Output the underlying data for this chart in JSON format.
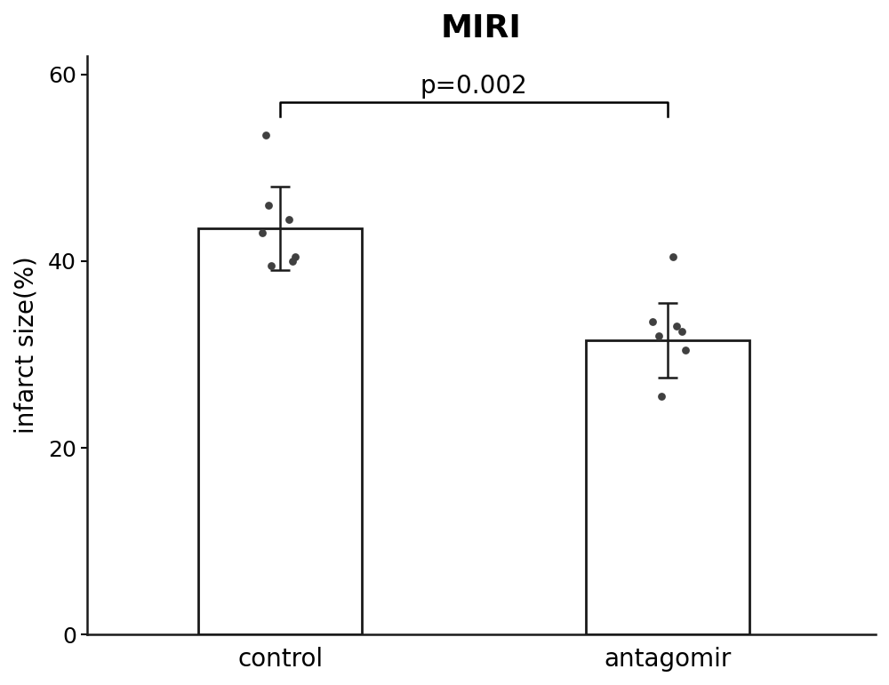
{
  "title": "MIRI",
  "ylabel": "infarct size(%)",
  "categories": [
    "control",
    "antagomir"
  ],
  "bar_means": [
    43.5,
    31.5
  ],
  "bar_errors": [
    4.5,
    4.0
  ],
  "bar_color": "#ffffff",
  "bar_edgecolor": "#1a1a1a",
  "dot_color": "#404040",
  "ylim": [
    0,
    62
  ],
  "yticks": [
    0,
    20,
    40,
    60
  ],
  "p_text": "p=0.002",
  "control_dots": [
    53.5,
    46.0,
    44.5,
    43.0,
    40.5,
    39.5,
    40.0
  ],
  "antagomir_dots": [
    40.5,
    33.5,
    33.0,
    32.5,
    32.0,
    30.5,
    25.5
  ],
  "bracket_y": 57.0,
  "bar_width": 0.55,
  "x_positions": [
    1.0,
    2.3
  ],
  "xlim": [
    0.35,
    3.0
  ],
  "background_color": "#ffffff",
  "title_fontsize": 26,
  "label_fontsize": 20,
  "tick_fontsize": 18,
  "cat_fontsize": 20,
  "control_x_offsets": [
    -0.05,
    -0.04,
    0.03,
    -0.06,
    0.05,
    -0.03,
    0.04
  ],
  "antagomir_x_offsets": [
    0.02,
    -0.05,
    0.03,
    0.05,
    -0.03,
    0.06,
    -0.02
  ]
}
